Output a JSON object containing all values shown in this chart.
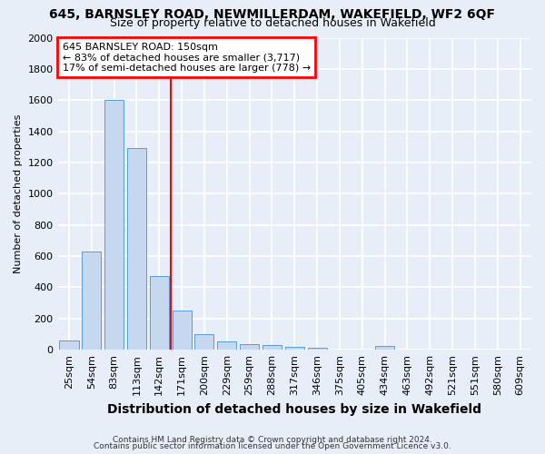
{
  "title": "645, BARNSLEY ROAD, NEWMILLERDAM, WAKEFIELD, WF2 6QF",
  "subtitle": "Size of property relative to detached houses in Wakefield",
  "xlabel": "Distribution of detached houses by size in Wakefield",
  "ylabel": "Number of detached properties",
  "footer_line1": "Contains HM Land Registry data © Crown copyright and database right 2024.",
  "footer_line2": "Contains public sector information licensed under the Open Government Licence v3.0.",
  "annotation_line1": "645 BARNSLEY ROAD: 150sqm",
  "annotation_line2": "← 83% of detached houses are smaller (3,717)",
  "annotation_line3": "17% of semi-detached houses are larger (778) →",
  "bar_labels": [
    "25sqm",
    "54sqm",
    "83sqm",
    "113sqm",
    "142sqm",
    "171sqm",
    "200sqm",
    "229sqm",
    "259sqm",
    "288sqm",
    "317sqm",
    "346sqm",
    "375sqm",
    "405sqm",
    "434sqm",
    "463sqm",
    "492sqm",
    "521sqm",
    "551sqm",
    "580sqm",
    "609sqm"
  ],
  "bar_values": [
    62,
    630,
    1600,
    1295,
    475,
    250,
    100,
    55,
    35,
    30,
    20,
    15,
    0,
    0,
    25,
    0,
    0,
    0,
    0,
    0,
    0
  ],
  "bar_color": "#c5d8f0",
  "bar_edge_color": "#5b9bd5",
  "vline_x": 4.5,
  "vline_color": "red",
  "ylim": [
    0,
    2000
  ],
  "yticks": [
    0,
    200,
    400,
    600,
    800,
    1000,
    1200,
    1400,
    1600,
    1800,
    2000
  ],
  "bg_color": "#e8eef8",
  "plot_bg_color": "#e8eef8",
  "annotation_box_color": "white",
  "annotation_box_edge": "red",
  "title_fontsize": 10,
  "subtitle_fontsize": 9,
  "ylabel_fontsize": 8,
  "xlabel_fontsize": 10,
  "tick_fontsize": 8,
  "ann_fontsize": 8,
  "footer_fontsize": 6.5
}
